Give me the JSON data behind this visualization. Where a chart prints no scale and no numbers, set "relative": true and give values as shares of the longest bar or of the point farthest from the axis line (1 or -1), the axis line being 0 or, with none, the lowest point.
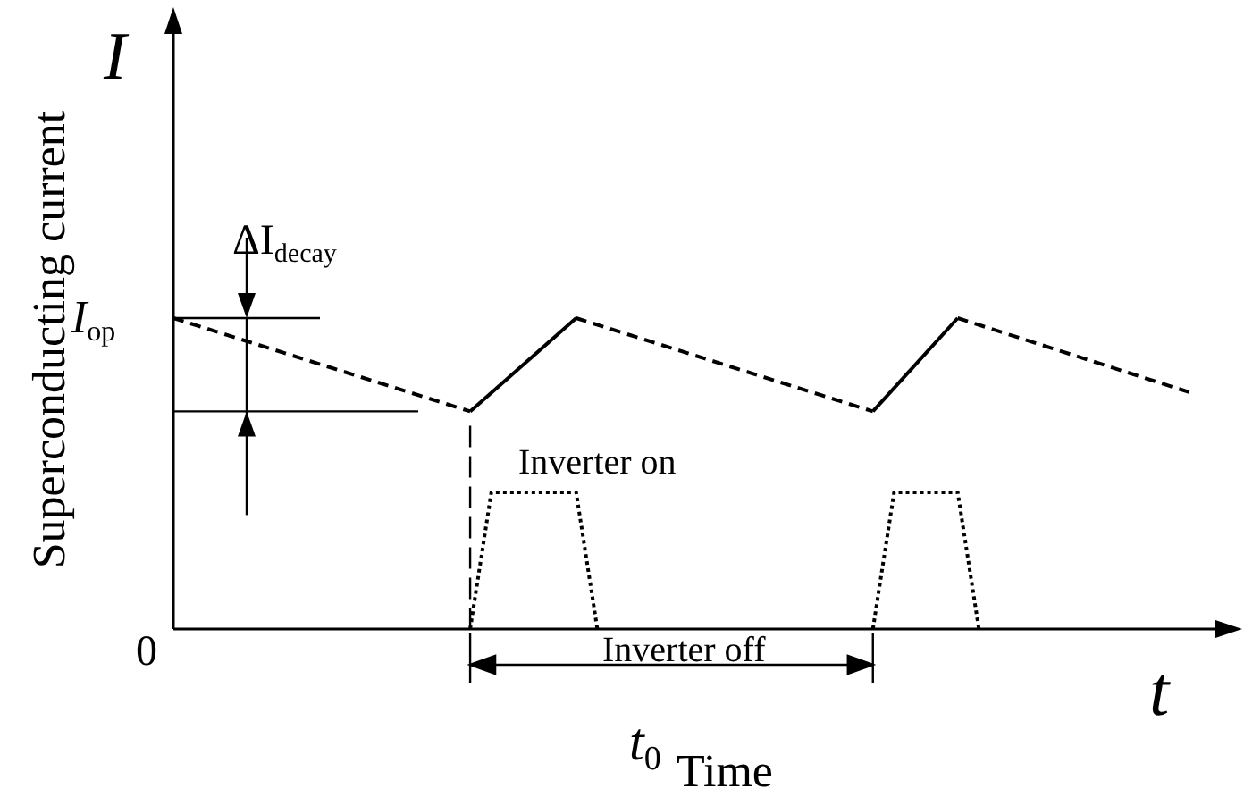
{
  "chart_data": {
    "type": "line",
    "relative": true,
    "xlabel": "Time",
    "ylabel": "Superconducting current",
    "marker": "none",
    "categories": [
      null,
      null,
      null,
      null,
      null,
      null,
      null,
      null,
      null,
      null,
      null,
      null,
      null,
      null,
      null,
      null,
      null,
      null,
      null,
      null,
      null,
      null,
      null,
      null,
      null,
      null,
      null,
      null,
      null,
      null,
      null,
      null,
      null,
      null,
      null,
      null,
      null,
      null,
      null,
      null,
      null,
      null,
      null,
      null,
      null,
      null,
      null,
      null,
      null,
      null,
      null
    ],
    "annotations": [
      "I",
      "ΔI$_{decay}$",
      "I$_{op}$",
      "0",
      "Inverter on",
      "Inverter off",
      "t$_{0}$",
      "t"
    ],
    "series": [
      {
        "color": "#000000",
        "line_style": "dashed",
        "values": [
          1,
          null,
          null,
          null,
          null,
          null,
          null,
          null,
          null,
          null,
          null,
          null,
          null,
          null,
          0.7,
          null,
          null,
          null,
          null,
          null,
          null,
          null,
          null,
          null,
          null,
          null,
          null,
          null,
          null,
          null,
          null,
          null,
          null,
          null,
          null,
          null,
          null,
          null,
          null,
          null,
          null,
          null,
          null,
          null,
          null,
          null,
          null,
          null,
          null,
          null,
          null
        ]
      },
      {
        "color": "#000000",
        "line_style": "solid",
        "values": [
          null,
          null,
          null,
          null,
          null,
          null,
          null,
          null,
          null,
          null,
          null,
          null,
          null,
          null,
          0.7,
          null,
          null,
          null,
          null,
          1,
          null,
          null,
          null,
          null,
          null,
          null,
          null,
          null,
          null,
          null,
          null,
          null,
          null,
          null,
          null,
          null,
          null,
          null,
          null,
          null,
          null,
          null,
          null,
          null,
          null,
          null,
          null,
          null,
          null,
          null,
          null
        ]
      },
      {
        "color": "#000000",
        "line_style": "dashed",
        "values": [
          null,
          null,
          null,
          null,
          null,
          null,
          null,
          null,
          null,
          null,
          null,
          null,
          null,
          null,
          null,
          null,
          null,
          null,
          null,
          1,
          null,
          null,
          null,
          null,
          null,
          null,
          null,
          null,
          null,
          null,
          null,
          null,
          null,
          0.7,
          null,
          null,
          null,
          null,
          null,
          null,
          null,
          null,
          null,
          null,
          null,
          null,
          null,
          null,
          null,
          null,
          null
        ]
      },
      {
        "color": "#000000",
        "line_style": "solid",
        "values": [
          null,
          null,
          null,
          null,
          null,
          null,
          null,
          null,
          null,
          null,
          null,
          null,
          null,
          null,
          null,
          null,
          null,
          null,
          null,
          null,
          null,
          null,
          null,
          null,
          null,
          null,
          null,
          null,
          null,
          null,
          null,
          null,
          null,
          0.7,
          null,
          null,
          null,
          1,
          null,
          null,
          null,
          null,
          null,
          null,
          null,
          null,
          null,
          null,
          null,
          null,
          null
        ]
      },
      {
        "color": "#000000",
        "line_style": "dashed",
        "values": [
          null,
          null,
          null,
          null,
          null,
          null,
          null,
          null,
          null,
          null,
          null,
          null,
          null,
          null,
          null,
          null,
          null,
          null,
          null,
          null,
          null,
          null,
          null,
          null,
          null,
          null,
          null,
          null,
          null,
          null,
          null,
          null,
          null,
          null,
          null,
          null,
          null,
          1,
          null,
          null,
          null,
          null,
          null,
          null,
          null,
          null,
          null,
          null,
          0.76,
          null,
          null
        ]
      },
      {
        "color": "#000000",
        "line_style": "dotted",
        "values": [
          null,
          null,
          null,
          null,
          null,
          null,
          null,
          null,
          null,
          null,
          null,
          null,
          null,
          null,
          0,
          0.44,
          null,
          null,
          null,
          0.44,
          0,
          null,
          null,
          null,
          null,
          null,
          null,
          null,
          null,
          null,
          null,
          null,
          null,
          null,
          null,
          null,
          null,
          null,
          null,
          null,
          null,
          null,
          null,
          null,
          null,
          null,
          null,
          null,
          null,
          null,
          null
        ]
      },
      {
        "color": "#000000",
        "line_style": "dotted",
        "values": [
          null,
          null,
          null,
          null,
          null,
          null,
          null,
          null,
          null,
          null,
          null,
          null,
          null,
          null,
          null,
          null,
          null,
          null,
          null,
          null,
          null,
          null,
          null,
          null,
          null,
          null,
          null,
          null,
          null,
          null,
          null,
          null,
          null,
          0,
          0.44,
          null,
          null,
          0.44,
          0,
          null,
          null,
          null,
          null,
          null,
          null,
          null,
          null,
          null,
          null,
          null,
          null
        ]
      }
    ]
  }
}
